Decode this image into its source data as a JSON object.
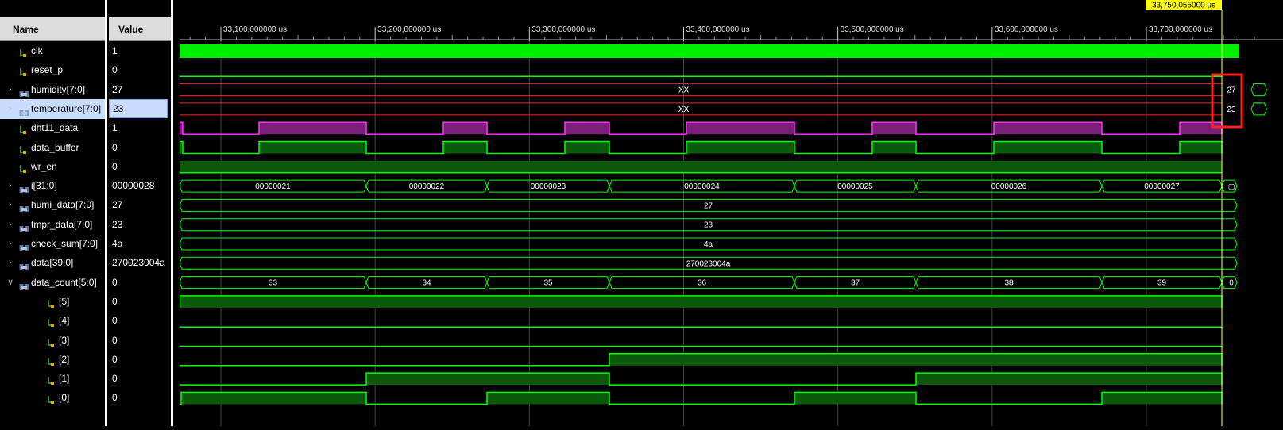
{
  "columns": {
    "name": "Name",
    "value": "Value"
  },
  "signals": [
    {
      "name": "clk",
      "value": "1",
      "kind": "scalar",
      "expand": ""
    },
    {
      "name": "reset_p",
      "value": "0",
      "kind": "scalar",
      "expand": ""
    },
    {
      "name": "humidity[7:0]",
      "value": "27",
      "kind": "vector",
      "expand": ">"
    },
    {
      "name": "temperature[7:0]",
      "value": "23",
      "kind": "vector",
      "expand": ">",
      "selected": true
    },
    {
      "name": "dht11_data",
      "value": "1",
      "kind": "scalar",
      "expand": ""
    },
    {
      "name": "data_buffer",
      "value": "0",
      "kind": "scalar",
      "expand": ""
    },
    {
      "name": "wr_en",
      "value": "0",
      "kind": "scalar",
      "expand": ""
    },
    {
      "name": "i[31:0]",
      "value": "00000028",
      "kind": "vector",
      "expand": ">"
    },
    {
      "name": "humi_data[7:0]",
      "value": "27",
      "kind": "vector",
      "expand": ">"
    },
    {
      "name": "tmpr_data[7:0]",
      "value": "23",
      "kind": "vector",
      "expand": ">"
    },
    {
      "name": "check_sum[7:0]",
      "value": "4a",
      "kind": "vector",
      "expand": ">"
    },
    {
      "name": "data[39:0]",
      "value": "270023004a",
      "kind": "vector",
      "expand": ">"
    },
    {
      "name": "data_count[5:0]",
      "value": "0",
      "kind": "vector",
      "expand": "v"
    },
    {
      "name": "[5]",
      "value": "0",
      "kind": "scalar",
      "expand": "",
      "indent": true
    },
    {
      "name": "[4]",
      "value": "0",
      "kind": "scalar",
      "expand": "",
      "indent": true
    },
    {
      "name": "[3]",
      "value": "0",
      "kind": "scalar",
      "expand": "",
      "indent": true
    },
    {
      "name": "[2]",
      "value": "0",
      "kind": "scalar",
      "expand": "",
      "indent": true
    },
    {
      "name": "[1]",
      "value": "0",
      "kind": "scalar",
      "expand": "",
      "indent": true
    },
    {
      "name": "[0]",
      "value": "0",
      "kind": "scalar",
      "expand": "",
      "indent": true
    }
  ],
  "timeline": {
    "cursor_label": "33,750,055000 us",
    "ticks": [
      "33,100,000000 us",
      "33,200,000000 us",
      "33,300,000000 us",
      "33,400,000000 us",
      "33,500,000000 us",
      "33,600,000000 us",
      "33,700,000000 us"
    ]
  },
  "wave_labels": {
    "humidity_xx": "XX",
    "humidity_end": "27",
    "temperature_xx": "XX",
    "temperature_end": "23",
    "i_values": [
      "00000021",
      "00000022",
      "00000023",
      "00000024",
      "00000025",
      "00000026",
      "00000027",
      "0"
    ],
    "humi_data": "27",
    "tmpr_data": "23",
    "check_sum": "4a",
    "data": "270023004a",
    "data_count_values": [
      "33",
      "34",
      "35",
      "36",
      "37",
      "38",
      "39",
      "0"
    ]
  },
  "colors": {
    "green": "#00ff00",
    "dark_green": "#0a5a0a",
    "magenta": "#ff33ff",
    "purple_fill": "#7a1f7a",
    "red": "#ff2020",
    "cursor": "#ffff66",
    "highlight_box": "#ff2020"
  }
}
